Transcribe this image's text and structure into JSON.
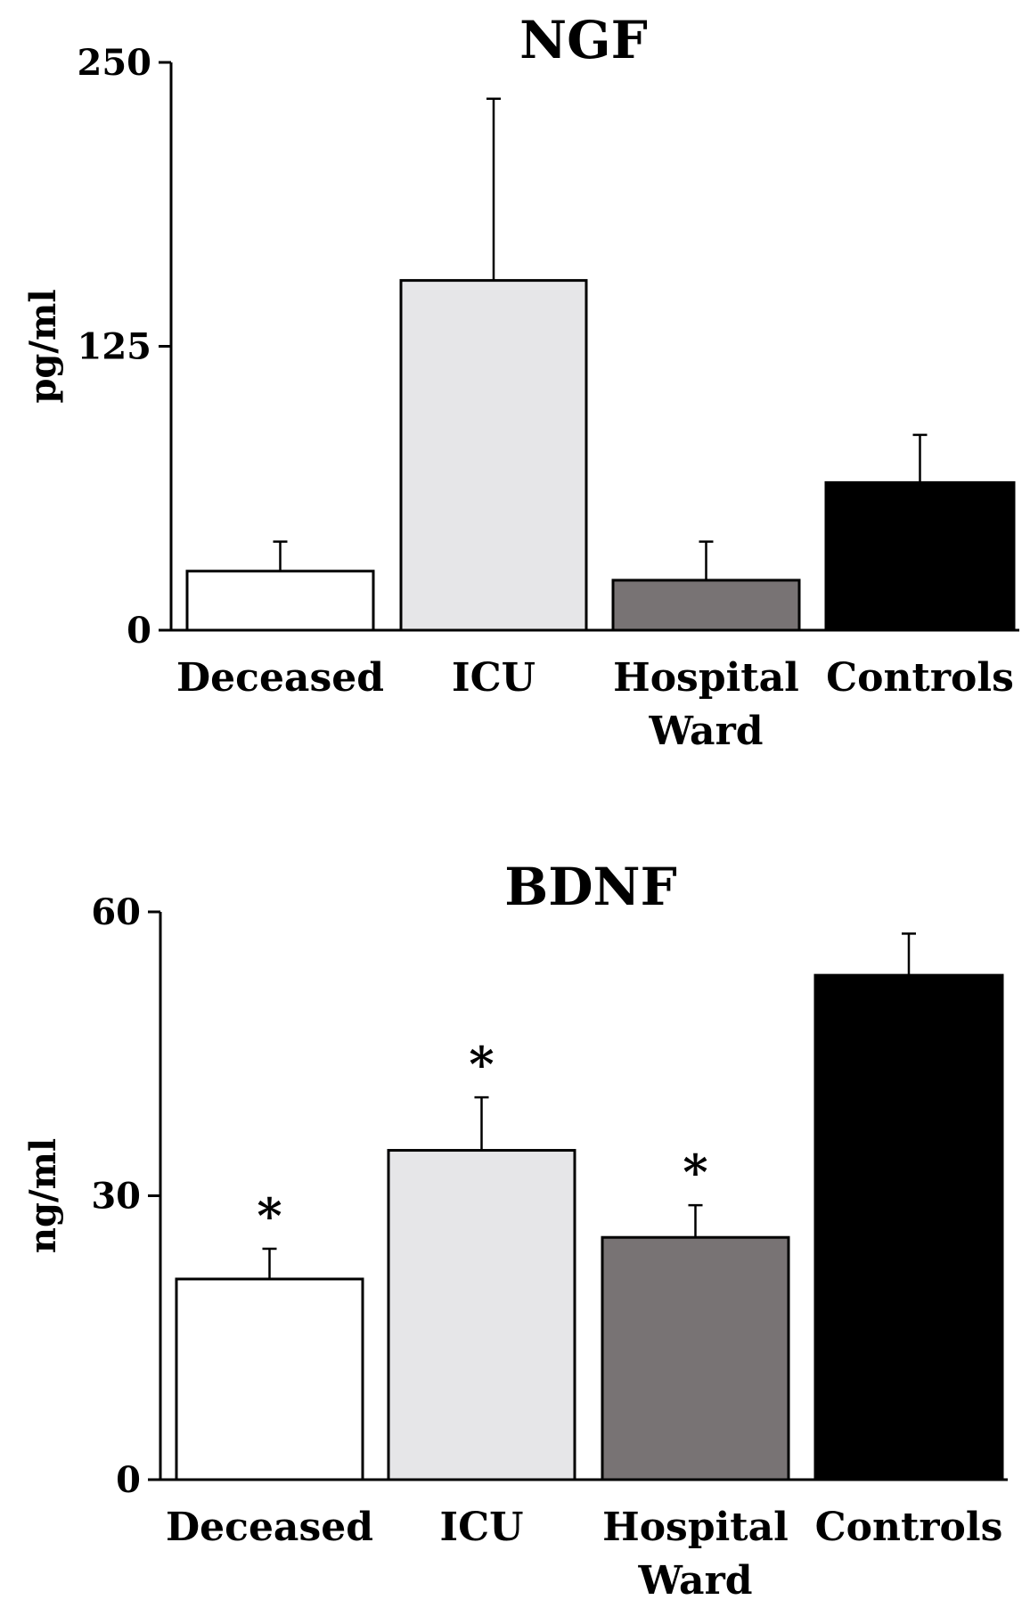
{
  "chart_data": [
    {
      "type": "bar",
      "title": "NGF",
      "xlabel": "",
      "ylabel": "pg/ml",
      "ylim": [
        0,
        250
      ],
      "yticks": [
        "0",
        "125",
        "250"
      ],
      "categories": [
        {
          "lines": [
            "Deceased"
          ]
        },
        {
          "lines": [
            "ICU"
          ]
        },
        {
          "lines": [
            "Hospital",
            "Ward"
          ]
        },
        {
          "lines": [
            "Controls"
          ]
        }
      ],
      "values": [
        26,
        154,
        22,
        65
      ],
      "errors": [
        13,
        80,
        17,
        21
      ],
      "significance": [
        "",
        "",
        "",
        ""
      ],
      "colors": [
        "#ffffff",
        "#e6e6e8",
        "#787374",
        "#000000"
      ],
      "grid": false,
      "legend": "none"
    },
    {
      "type": "bar",
      "title": "BDNF",
      "xlabel": "",
      "ylabel": "ng/ml",
      "ylim": [
        0,
        60
      ],
      "yticks": [
        "0",
        "30",
        "60"
      ],
      "categories": [
        {
          "lines": [
            "Deceased"
          ]
        },
        {
          "lines": [
            "ICU"
          ]
        },
        {
          "lines": [
            "Hospital",
            "Ward"
          ]
        },
        {
          "lines": [
            "Controls"
          ]
        }
      ],
      "values": [
        21.2,
        34.8,
        25.6,
        53.3
      ],
      "errors": [
        3.2,
        5.6,
        3.4,
        4.4
      ],
      "significance": [
        "*",
        "*",
        "*",
        ""
      ],
      "colors": [
        "#ffffff",
        "#e6e6e8",
        "#787374",
        "#000000"
      ],
      "grid": false,
      "legend": "none"
    }
  ]
}
